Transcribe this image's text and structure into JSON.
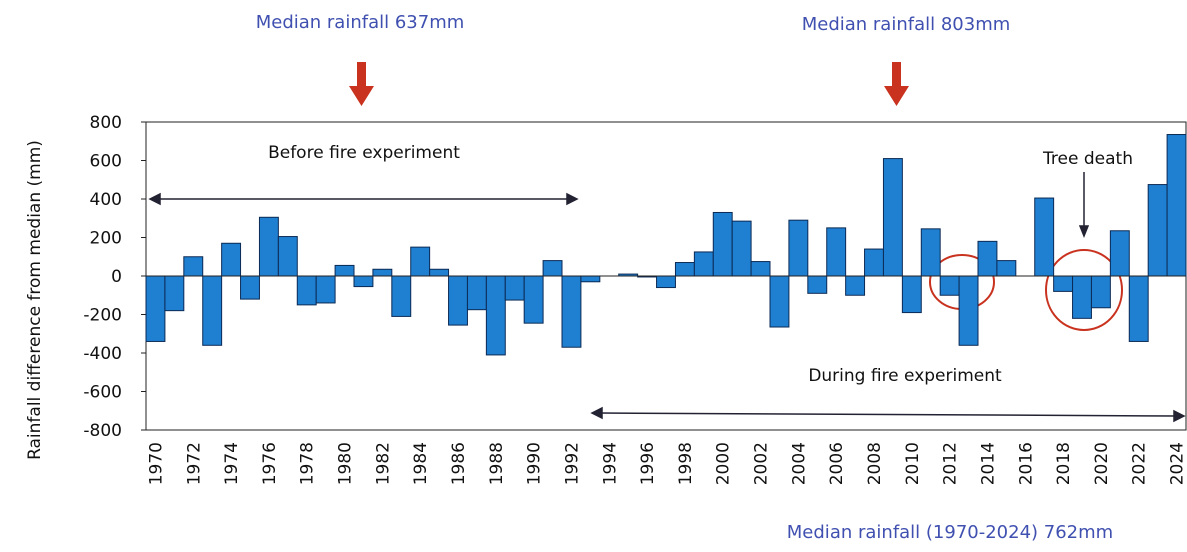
{
  "chart_data": {
    "type": "bar",
    "y_label": "Rainfall difference from median (mm)",
    "annotations": [
      "Median rainfall 637mm",
      "Median rainfall 803mm",
      "Before fire experiment",
      "During fire experiment",
      "Tree death",
      "Median rainfall (1970-2024) 762mm"
    ],
    "categories": [
      "1970",
      null,
      "1972",
      null,
      "1974",
      null,
      "1976",
      null,
      "1978",
      null,
      "1980",
      null,
      "1982",
      null,
      "1984",
      null,
      "1986",
      null,
      "1988",
      null,
      "1990",
      null,
      "1992",
      null,
      "1994",
      null,
      "1996",
      null,
      "1998",
      null,
      "2000",
      null,
      "2002",
      null,
      "2004",
      null,
      "2006",
      null,
      "2008",
      null,
      "2010",
      null,
      "2012",
      null,
      "2014",
      null,
      "2016",
      null,
      "2018",
      null,
      "2020",
      null,
      "2022",
      null,
      "2024"
    ],
    "values": [
      -340,
      -180,
      100,
      -360,
      170,
      -120,
      305,
      205,
      -150,
      -140,
      55,
      -55,
      35,
      -210,
      150,
      35,
      -255,
      -175,
      -410,
      -125,
      -245,
      80,
      -370,
      -30,
      0,
      10,
      -5,
      -60,
      70,
      125,
      330,
      285,
      75,
      -265,
      290,
      -90,
      250,
      -100,
      140,
      610,
      -190,
      245,
      -100,
      -360,
      180,
      80,
      0,
      405,
      -80,
      -220,
      -165,
      235,
      -340,
      475,
      735
    ],
    "color": "#1f7fd0",
    "ylim": [
      -800,
      800
    ],
    "yticks": [
      -800,
      -600,
      -400,
      -200,
      0,
      200,
      400,
      600,
      800
    ]
  }
}
